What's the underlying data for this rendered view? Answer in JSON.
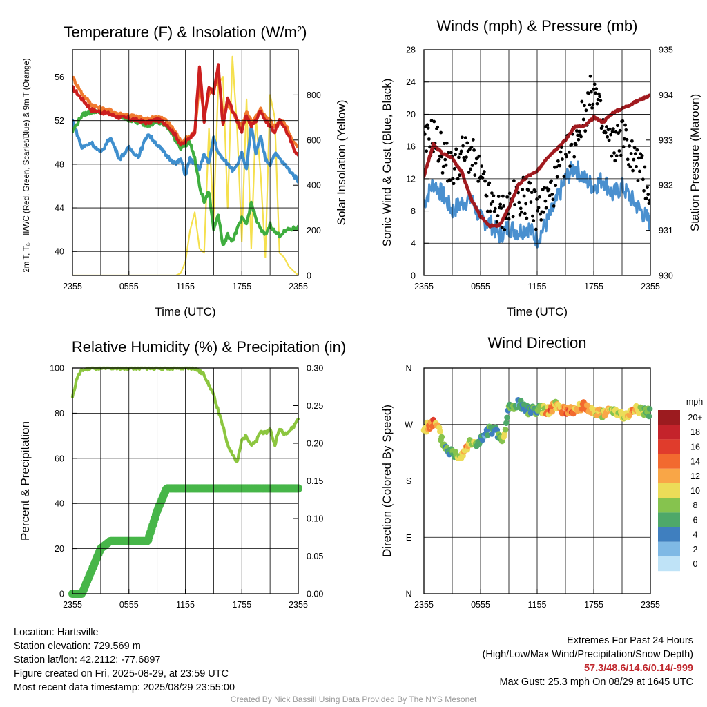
{
  "chart_data": [
    {
      "type": "line",
      "title": "Temperature (F) & Insolation (W/m²)",
      "xlabel": "Time (UTC)",
      "ylabel": "2m T, Tₐ, HI/WC (Red, Green, Scarlet/Blue) & 9m T (Orange)",
      "ylabel_right": "Solar Insolation (Yellow)",
      "x_ticks": [
        "2355",
        "0555",
        "1155",
        "1755",
        "2355"
      ],
      "ylim": [
        37.8,
        58.5
      ],
      "y_ticks": [
        40,
        44,
        48,
        52,
        56
      ],
      "y2lim": [
        0,
        1000
      ],
      "y2_ticks": [
        0,
        200,
        400,
        600,
        800
      ],
      "x_hours": [
        0,
        1,
        2,
        3,
        4,
        5,
        6,
        7,
        8,
        9,
        10,
        11,
        11.5,
        12,
        12.5,
        13,
        13.5,
        14,
        14.5,
        15,
        15.5,
        16,
        16.5,
        17,
        17.5,
        18,
        18.5,
        19,
        19.5,
        20,
        20.5,
        21,
        21.5,
        22,
        22.5,
        23,
        23.5,
        24
      ],
      "series": [
        {
          "name": "2m T",
          "color": "#cc1f1f",
          "axis": "left",
          "values": [
            55.0,
            54.0,
            53.0,
            52.8,
            52.6,
            52.3,
            52.2,
            52.0,
            51.8,
            52.1,
            51.7,
            50.6,
            49.8,
            50.0,
            50.5,
            51.0,
            57.0,
            52.0,
            55.0,
            54.5,
            57.0,
            51.5,
            54.0,
            53.0,
            52.0,
            51.0,
            52.5,
            51.5,
            52.0,
            53.0,
            52.0,
            51.5,
            51.0,
            52.0,
            51.5,
            50.5,
            49.5,
            48.8
          ]
        },
        {
          "name": "9m T",
          "color": "#f07a2f",
          "axis": "left",
          "values": [
            56.0,
            54.5,
            53.5,
            53.1,
            52.9,
            52.6,
            52.5,
            52.3,
            52.1,
            52.4,
            52.0,
            50.9,
            50.1,
            50.3,
            50.6,
            51.0,
            55.5,
            52.5,
            54.5,
            55.0,
            56.0,
            52.5,
            53.5,
            52.8,
            52.0,
            51.5,
            52.8,
            52.0,
            52.3,
            53.0,
            52.3,
            52.0,
            51.5,
            52.0,
            51.8,
            51.0,
            50.0,
            49.5
          ]
        },
        {
          "name": "Tₐ",
          "color": "#3fae3f",
          "axis": "left",
          "values": [
            51.0,
            52.5,
            52.8,
            52.9,
            52.8,
            52.4,
            52.1,
            51.8,
            51.6,
            51.9,
            51.5,
            50.2,
            49.5,
            49.8,
            50.0,
            48.5,
            46.0,
            44.5,
            45.5,
            42.0,
            43.5,
            40.5,
            41.5,
            41.0,
            42.0,
            43.0,
            42.5,
            44.5,
            43.0,
            42.0,
            41.5,
            42.5,
            41.8,
            41.5,
            41.8,
            42.0,
            42.1,
            42.2
          ]
        },
        {
          "name": "WC",
          "color": "#3f8fce",
          "axis": "left",
          "values": [
            52.0,
            49.5,
            50.0,
            49.0,
            50.5,
            48.5,
            49.5,
            48.7,
            50.8,
            49.8,
            48.8,
            48.0,
            48.5,
            47.0,
            48.5,
            48.0,
            47.5,
            49.0,
            48.0,
            50.5,
            49.0,
            48.5,
            48.0,
            47.5,
            48.0,
            49.0,
            47.5,
            51.5,
            49.0,
            50.5,
            48.5,
            48.0,
            49.0,
            48.5,
            48.0,
            47.5,
            47.0,
            46.5
          ]
        },
        {
          "name": "Solar Insolation",
          "color": "#f5e04e",
          "axis": "right",
          "values": [
            0,
            0,
            0,
            0,
            0,
            0,
            0,
            0,
            0,
            0,
            0,
            0,
            10,
            60,
            200,
            280,
            120,
            100,
            650,
            250,
            850,
            880,
            300,
            970,
            650,
            150,
            780,
            120,
            700,
            450,
            80,
            800,
            700,
            100,
            80,
            40,
            20,
            0
          ]
        }
      ]
    },
    {
      "type": "line",
      "title": "Winds (mph) & Pressure (mb)",
      "xlabel": "Time (UTC)",
      "ylabel": "Sonic Wind & Gust (Blue, Black)",
      "ylabel_right": "Station Pressure (Maroon)",
      "x_ticks": [
        "2355",
        "0555",
        "1155",
        "1755",
        "2355"
      ],
      "ylim": [
        0,
        28
      ],
      "y_ticks": [
        0,
        4,
        8,
        12,
        16,
        20,
        24,
        28
      ],
      "y2lim": [
        930,
        935
      ],
      "y2_ticks": [
        930,
        931,
        932,
        933,
        934,
        935
      ],
      "x_hours": [
        0,
        1,
        2,
        3,
        4,
        5,
        6,
        7,
        8,
        9,
        10,
        11,
        12,
        13,
        14,
        15,
        16,
        17,
        18,
        19,
        20,
        21,
        22,
        23,
        24
      ],
      "series": [
        {
          "name": "Sonic Wind",
          "color": "#4a90cf",
          "axis": "left",
          "values": [
            9,
            11.5,
            10,
            8,
            9,
            9.5,
            7,
            6.5,
            5,
            6,
            5.5,
            6,
            4.5,
            6.5,
            9,
            12,
            13.5,
            12,
            11,
            12,
            10,
            11,
            9.5,
            8,
            6.5
          ]
        },
        {
          "name": "Pressure",
          "color": "#a11a1f",
          "axis": "right",
          "values": [
            932.2,
            932.9,
            932.7,
            932.6,
            932.3,
            931.7,
            931.3,
            931.1,
            931.1,
            931.5,
            932.0,
            932.2,
            932.3,
            932.6,
            932.8,
            933.0,
            933.3,
            933.3,
            933.5,
            933.4,
            933.6,
            933.7,
            933.8,
            933.9,
            934.0
          ]
        },
        {
          "name": "Gust",
          "color": "#000000",
          "axis": "left",
          "values": [
            16,
            17.5,
            15,
            13,
            15,
            15,
            12,
            9,
            7.5,
            8.5,
            10,
            9.5,
            8,
            9.5,
            11.5,
            15,
            17,
            20,
            23.5,
            18,
            16,
            17.5,
            15,
            13,
            10
          ]
        }
      ]
    },
    {
      "type": "line",
      "title": "Relative Humidity (%) & Precipitation (in)",
      "ylabel": "Percent & Precipitation",
      "x_ticks": [
        "2355",
        "0555",
        "1155",
        "1755",
        "2355"
      ],
      "ylim": [
        0,
        100
      ],
      "y_ticks": [
        0,
        20,
        40,
        60,
        80,
        100
      ],
      "y2lim": [
        0,
        0.3
      ],
      "y2_ticks": [
        "0.00",
        "0.05",
        "0.10",
        "0.15",
        "0.20",
        "0.25",
        "0.30"
      ],
      "x_hours": [
        0,
        0.5,
        1,
        2,
        3,
        4,
        5,
        6,
        7,
        8,
        9,
        10,
        11,
        12,
        13,
        14,
        15,
        15.5,
        16,
        16.5,
        17,
        17.5,
        18,
        18.5,
        19,
        19.5,
        20,
        20.5,
        21,
        21.5,
        22,
        22.5,
        23,
        23.5,
        24
      ],
      "series": [
        {
          "name": "Relative Humidity",
          "color": "#8cc63f",
          "axis": "left",
          "values": [
            87,
            96,
            99,
            100,
            100,
            100,
            100,
            100,
            100,
            100,
            100,
            100,
            100,
            100,
            100,
            97,
            88,
            81,
            74,
            66,
            62,
            58,
            68,
            70,
            66,
            67,
            72,
            71,
            73,
            66,
            73,
            71,
            72,
            74,
            78
          ]
        },
        {
          "name": "Precipitation",
          "color": "#47b649",
          "axis": "right",
          "values": [
            0,
            0,
            0,
            0.03,
            0.06,
            0.07,
            0.07,
            0.07,
            0.07,
            0.07,
            0.11,
            0.14,
            0.14,
            0.14,
            0.14,
            0.14,
            0.14,
            0.14,
            0.14,
            0.14,
            0.14,
            0.14,
            0.14,
            0.14,
            0.14,
            0.14,
            0.14,
            0.14,
            0.14,
            0.14,
            0.14,
            0.14,
            0.14,
            0.14,
            0.14
          ]
        }
      ]
    },
    {
      "type": "scatter",
      "title": "Wind Direction",
      "ylabel": "Direction (Colored By Speed)",
      "x_ticks": [
        "2355",
        "0555",
        "1155",
        "1755",
        "2355"
      ],
      "y_ticks": [
        "N",
        "E",
        "S",
        "W",
        "N"
      ],
      "ylim_degrees": [
        0,
        360
      ],
      "legend_title": "mph",
      "legend_labels": [
        "20+",
        "18",
        "16",
        "14",
        "12",
        "10",
        "8",
        "6",
        "4",
        "2",
        "0"
      ],
      "legend_colors": [
        "#9c1b1f",
        "#c4232b",
        "#e03c2c",
        "#f26a2f",
        "#f9a647",
        "#ecdc58",
        "#86c34e",
        "#4ea869",
        "#3f7fbf",
        "#7fb9e5",
        "#bfe3f7"
      ],
      "x_hours": [
        0,
        0.5,
        1,
        1.5,
        2,
        2.5,
        3,
        3.5,
        4,
        4.5,
        5,
        5.5,
        6,
        6.5,
        7,
        7.5,
        8,
        8.5,
        9,
        9.5,
        10,
        10.5,
        11,
        11.5,
        12,
        12.5,
        13,
        13.5,
        14,
        14.5,
        15,
        15.5,
        16,
        16.5,
        17,
        17.5,
        18,
        18.5,
        19,
        19.5,
        20,
        20.5,
        21,
        21.5,
        22,
        22.5,
        23,
        23.5,
        24
      ],
      "direction_deg": [
        262,
        268,
        272,
        265,
        240,
        230,
        225,
        222,
        222,
        235,
        240,
        238,
        245,
        252,
        262,
        260,
        250,
        246,
        300,
        295,
        305,
        298,
        292,
        296,
        292,
        295,
        290,
        295,
        300,
        296,
        290,
        295,
        292,
        296,
        300,
        295,
        290,
        292,
        286,
        290,
        294,
        292,
        285,
        282,
        290,
        296,
        292,
        290,
        288
      ],
      "speed_mph": [
        9,
        12,
        14,
        10,
        8,
        6,
        6,
        7,
        10,
        12,
        9,
        8,
        5,
        4,
        6,
        5,
        6,
        8,
        6,
        7,
        4,
        5,
        6,
        5,
        6,
        8,
        12,
        14,
        10,
        12,
        13,
        14,
        12,
        11,
        14,
        13,
        10,
        11,
        9,
        12,
        8,
        10,
        11,
        9,
        12,
        11,
        9,
        8,
        6
      ]
    }
  ],
  "info": {
    "location": "Location: Hartsville",
    "elevation": "Station elevation: 729.569 m",
    "latlon": "Station lat/lon: 42.2112; -77.6897",
    "created": "Figure created on Fri, 2025-08-29, at 23:59 UTC",
    "recent": "Most recent data timestamp: 2025/08/29 23:55:00"
  },
  "extremes": {
    "title": "Extremes For Past 24 Hours",
    "subtitle": "(High/Low/Max Wind/Precipitation/Snow Depth)",
    "values": "57.3/48.6/14.6/0.14/-999",
    "gust": "Max Gust: 25.3 mph On 08/29 at 1645 UTC"
  },
  "credit": "Created By Nick Bassill Using Data Provided By The NYS Mesonet"
}
